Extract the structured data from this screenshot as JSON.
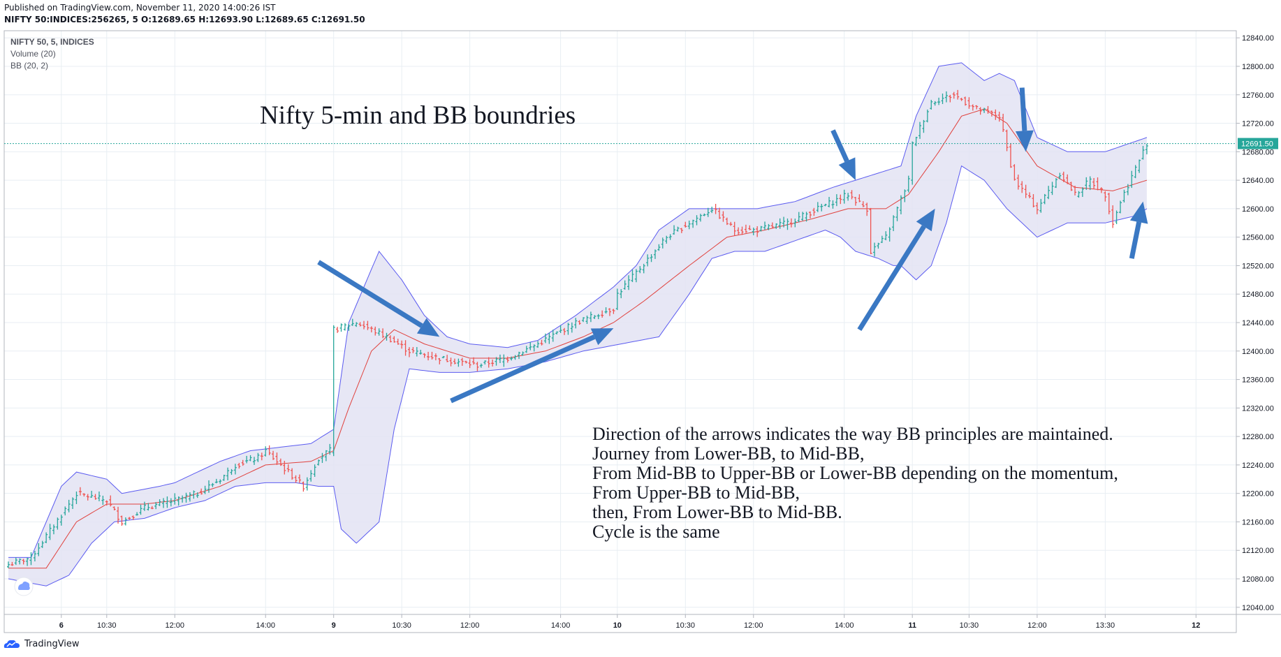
{
  "header": {
    "published": "Published on TradingView.com, November 11, 2020 14:00:26 IST",
    "symbol": "NIFTY 50:INDICES:256265, 5",
    "ohlc": {
      "o_label": "O:",
      "o": "12689.65",
      "h_label": "H:",
      "h": "12693.90",
      "l_label": "L:",
      "l": "12689.65",
      "c_label": "C:",
      "c": "12691.50"
    }
  },
  "legend": {
    "series": "NIFTY 50, 5, INDICES",
    "volume": "Volume (20)",
    "bb": "BB (20, 2)"
  },
  "annotations": {
    "title": "Nifty 5-min and BB boundries",
    "notes": [
      "Direction of the arrows indicates the way BB principles are maintained.",
      "Journey from Lower-BB, to Mid-BB,",
      "From Mid-BB to Upper-BB or Lower-BB depending on the momentum,",
      "From Upper-BB to Mid-BB,",
      "then, From Lower-BB to Mid-BB.",
      "Cycle is the same"
    ]
  },
  "footer": {
    "brand": "TradingView"
  },
  "colors": {
    "up": "#26a69a",
    "down": "#ef5350",
    "band_line": "#5b5bf0",
    "band_fill": "#e3e3f3",
    "basis": "#e0423e",
    "arrow": "#3a78c3",
    "price_label": "#26a69a",
    "grid": "#e8eef3"
  },
  "chart_data": {
    "type": "candlestick",
    "y_axis": {
      "min": 12030,
      "max": 12850,
      "ticks": [
        "12840.00",
        "12800.00",
        "12760.00",
        "12720.00",
        "12680.00",
        "12640.00",
        "12600.00",
        "12560.00",
        "12520.00",
        "12480.00",
        "12440.00",
        "12400.00",
        "12360.00",
        "12320.00",
        "12280.00",
        "12240.00",
        "12200.00",
        "12160.00",
        "12120.00",
        "12080.00",
        "12040.00"
      ]
    },
    "x_axis": {
      "ticks": [
        {
          "label": "6",
          "bar": 14,
          "bold": true
        },
        {
          "label": "10:30",
          "bar": 26
        },
        {
          "label": "12:00",
          "bar": 44
        },
        {
          "label": "14:00",
          "bar": 68
        },
        {
          "label": "9",
          "bar": 86,
          "bold": true
        },
        {
          "label": "10:30",
          "bar": 104
        },
        {
          "label": "12:00",
          "bar": 122
        },
        {
          "label": "14:00",
          "bar": 146
        },
        {
          "label": "10",
          "bar": 161,
          "bold": true
        },
        {
          "label": "10:30",
          "bar": 179
        },
        {
          "label": "12:00",
          "bar": 197
        },
        {
          "label": "14:00",
          "bar": 221
        },
        {
          "label": "11",
          "bar": 239,
          "bold": true
        },
        {
          "label": "10:30",
          "bar": 254
        },
        {
          "label": "12:00",
          "bar": 272
        },
        {
          "label": "13:30",
          "bar": 290
        },
        {
          "label": "12",
          "bar": 314,
          "bold": true
        }
      ]
    },
    "last_price": 12691.5,
    "last_price_label": "12691.50",
    "closes_anchor": [
      [
        0,
        12100
      ],
      [
        6,
        12110
      ],
      [
        14,
        12170
      ],
      [
        18,
        12200
      ],
      [
        26,
        12190
      ],
      [
        30,
        12160
      ],
      [
        36,
        12180
      ],
      [
        44,
        12190
      ],
      [
        50,
        12200
      ],
      [
        56,
        12220
      ],
      [
        60,
        12240
      ],
      [
        66,
        12250
      ],
      [
        68,
        12260
      ],
      [
        74,
        12230
      ],
      [
        78,
        12210
      ],
      [
        82,
        12250
      ],
      [
        85,
        12260
      ],
      [
        86,
        12430
      ],
      [
        92,
        12440
      ],
      [
        100,
        12420
      ],
      [
        106,
        12400
      ],
      [
        114,
        12390
      ],
      [
        124,
        12380
      ],
      [
        132,
        12390
      ],
      [
        140,
        12410
      ],
      [
        150,
        12440
      ],
      [
        160,
        12460
      ],
      [
        161,
        12480
      ],
      [
        166,
        12510
      ],
      [
        174,
        12560
      ],
      [
        180,
        12580
      ],
      [
        186,
        12600
      ],
      [
        192,
        12570
      ],
      [
        198,
        12570
      ],
      [
        206,
        12580
      ],
      [
        214,
        12600
      ],
      [
        222,
        12620
      ],
      [
        227,
        12600
      ],
      [
        228,
        12540
      ],
      [
        232,
        12560
      ],
      [
        238,
        12640
      ],
      [
        239,
        12690
      ],
      [
        244,
        12750
      ],
      [
        250,
        12760
      ],
      [
        256,
        12740
      ],
      [
        262,
        12730
      ],
      [
        266,
        12640
      ],
      [
        272,
        12600
      ],
      [
        278,
        12650
      ],
      [
        282,
        12620
      ],
      [
        286,
        12640
      ],
      [
        290,
        12620
      ],
      [
        292,
        12580
      ],
      [
        294,
        12610
      ],
      [
        300,
        12680
      ],
      [
        301,
        12692
      ]
    ],
    "bb_upper_anchor": [
      [
        0,
        12110
      ],
      [
        6,
        12110
      ],
      [
        14,
        12210
      ],
      [
        18,
        12230
      ],
      [
        26,
        12220
      ],
      [
        30,
        12200
      ],
      [
        40,
        12210
      ],
      [
        44,
        12215
      ],
      [
        56,
        12245
      ],
      [
        64,
        12260
      ],
      [
        72,
        12265
      ],
      [
        80,
        12270
      ],
      [
        86,
        12290
      ],
      [
        90,
        12440
      ],
      [
        98,
        12540
      ],
      [
        104,
        12500
      ],
      [
        110,
        12450
      ],
      [
        116,
        12420
      ],
      [
        122,
        12410
      ],
      [
        132,
        12405
      ],
      [
        140,
        12415
      ],
      [
        150,
        12450
      ],
      [
        160,
        12490
      ],
      [
        166,
        12520
      ],
      [
        172,
        12570
      ],
      [
        180,
        12600
      ],
      [
        188,
        12600
      ],
      [
        198,
        12600
      ],
      [
        208,
        12610
      ],
      [
        218,
        12630
      ],
      [
        224,
        12640
      ],
      [
        230,
        12650
      ],
      [
        236,
        12660
      ],
      [
        240,
        12730
      ],
      [
        246,
        12800
      ],
      [
        252,
        12805
      ],
      [
        258,
        12780
      ],
      [
        262,
        12790
      ],
      [
        266,
        12780
      ],
      [
        272,
        12700
      ],
      [
        280,
        12680
      ],
      [
        290,
        12680
      ],
      [
        301,
        12700
      ]
    ],
    "bb_lower_anchor": [
      [
        0,
        12080
      ],
      [
        10,
        12070
      ],
      [
        16,
        12085
      ],
      [
        22,
        12130
      ],
      [
        28,
        12160
      ],
      [
        36,
        12165
      ],
      [
        44,
        12180
      ],
      [
        52,
        12190
      ],
      [
        60,
        12210
      ],
      [
        68,
        12215
      ],
      [
        76,
        12215
      ],
      [
        82,
        12210
      ],
      [
        86,
        12210
      ],
      [
        88,
        12150
      ],
      [
        92,
        12130
      ],
      [
        98,
        12160
      ],
      [
        102,
        12290
      ],
      [
        106,
        12375
      ],
      [
        114,
        12370
      ],
      [
        122,
        12370
      ],
      [
        132,
        12375
      ],
      [
        142,
        12385
      ],
      [
        152,
        12400
      ],
      [
        162,
        12410
      ],
      [
        172,
        12420
      ],
      [
        180,
        12480
      ],
      [
        186,
        12530
      ],
      [
        192,
        12540
      ],
      [
        200,
        12540
      ],
      [
        208,
        12555
      ],
      [
        216,
        12570
      ],
      [
        220,
        12560
      ],
      [
        224,
        12540
      ],
      [
        230,
        12530
      ],
      [
        234,
        12520
      ],
      [
        236,
        12520
      ],
      [
        240,
        12500
      ],
      [
        244,
        12520
      ],
      [
        248,
        12580
      ],
      [
        252,
        12660
      ],
      [
        258,
        12640
      ],
      [
        264,
        12600
      ],
      [
        272,
        12560
      ],
      [
        280,
        12580
      ],
      [
        290,
        12580
      ],
      [
        298,
        12590
      ],
      [
        301,
        12600
      ]
    ],
    "bb_basis_anchor": [
      [
        0,
        12095
      ],
      [
        10,
        12095
      ],
      [
        18,
        12160
      ],
      [
        26,
        12185
      ],
      [
        36,
        12185
      ],
      [
        44,
        12190
      ],
      [
        56,
        12210
      ],
      [
        68,
        12240
      ],
      [
        80,
        12245
      ],
      [
        86,
        12260
      ],
      [
        90,
        12320
      ],
      [
        96,
        12400
      ],
      [
        102,
        12430
      ],
      [
        110,
        12410
      ],
      [
        122,
        12390
      ],
      [
        132,
        12390
      ],
      [
        142,
        12400
      ],
      [
        152,
        12420
      ],
      [
        160,
        12440
      ],
      [
        168,
        12470
      ],
      [
        180,
        12520
      ],
      [
        190,
        12560
      ],
      [
        200,
        12570
      ],
      [
        212,
        12585
      ],
      [
        222,
        12600
      ],
      [
        232,
        12600
      ],
      [
        238,
        12620
      ],
      [
        246,
        12680
      ],
      [
        252,
        12730
      ],
      [
        258,
        12740
      ],
      [
        264,
        12720
      ],
      [
        272,
        12660
      ],
      [
        282,
        12630
      ],
      [
        292,
        12625
      ],
      [
        301,
        12640
      ]
    ],
    "arrows": [
      {
        "from": [
          82,
          12525
        ],
        "to": [
          114,
          12420
        ]
      },
      {
        "from": [
          117,
          12330
        ],
        "to": [
          160,
          12432
        ]
      },
      {
        "from": [
          225,
          12430
        ],
        "to": [
          245,
          12600
        ]
      },
      {
        "from": [
          218,
          12710
        ],
        "to": [
          224,
          12640
        ]
      },
      {
        "from": [
          268,
          12770
        ],
        "to": [
          269,
          12680
        ]
      },
      {
        "from": [
          297,
          12530
        ],
        "to": [
          300,
          12610
        ]
      }
    ]
  }
}
